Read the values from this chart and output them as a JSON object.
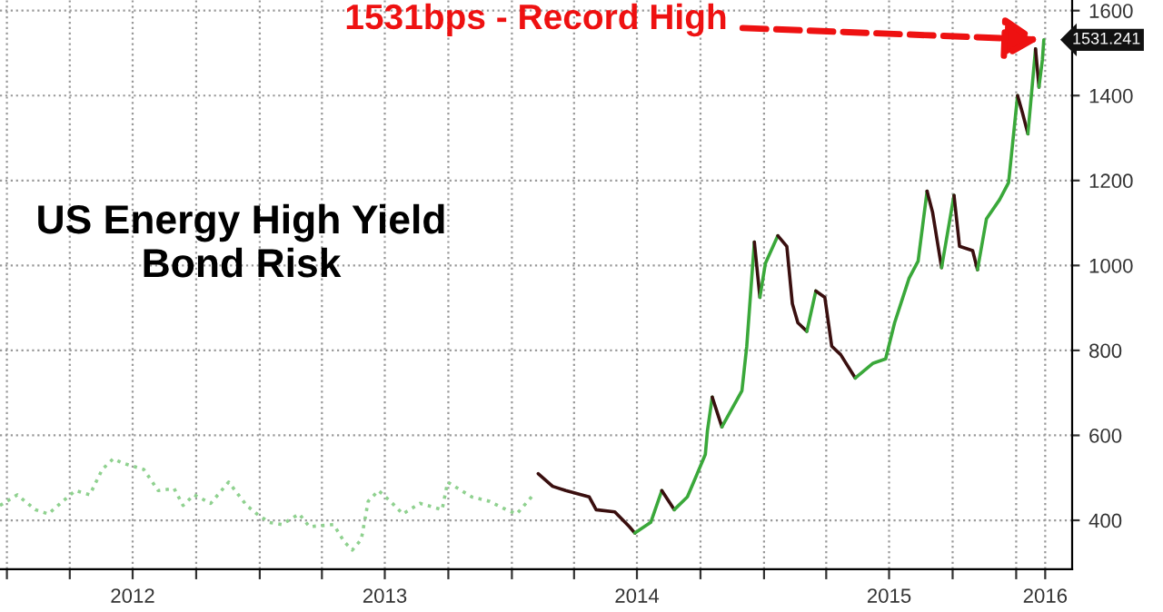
{
  "chart_data": {
    "type": "line",
    "title": "US Energy High Yield\nBond Risk",
    "xlim": [
      "2011-12-22",
      "2016-03-22"
    ],
    "ylim": [
      285,
      1625
    ],
    "xticks": [
      {
        "value": "2012-01-01",
        "label": null
      },
      {
        "value": "2012-04-01",
        "label": null
      },
      {
        "value": "2012-07-01",
        "label": "2012"
      },
      {
        "value": "2012-10-01",
        "label": null
      },
      {
        "value": "2013-01-01",
        "label": null
      },
      {
        "value": "2013-04-01",
        "label": null
      },
      {
        "value": "2013-07-01",
        "label": "2013"
      },
      {
        "value": "2013-10-01",
        "label": null
      },
      {
        "value": "2014-01-01",
        "label": null
      },
      {
        "value": "2014-04-01",
        "label": null
      },
      {
        "value": "2014-07-01",
        "label": "2014"
      },
      {
        "value": "2014-10-01",
        "label": null
      },
      {
        "value": "2015-01-01",
        "label": null
      },
      {
        "value": "2015-04-01",
        "label": null
      },
      {
        "value": "2015-07-01",
        "label": "2015"
      },
      {
        "value": "2015-10-01",
        "label": null
      },
      {
        "value": "2016-01-01",
        "label": null
      },
      {
        "value": "2016-02-12",
        "label": "2016"
      }
    ],
    "yticks": [
      400,
      600,
      800,
      1000,
      1200,
      1400,
      1600
    ],
    "grid": true,
    "legend": false,
    "marker": "none",
    "line_style": "solid",
    "series": [
      {
        "color": "#8fd18f",
        "line_style": "dotted",
        "x": [
          "2011-12-22",
          "2012-01-16",
          "2012-02-11",
          "2012-03-01",
          "2012-03-22",
          "2012-04-09",
          "2012-04-30",
          "2012-05-18",
          "2012-06-03",
          "2012-06-16",
          "2012-07-17",
          "2012-08-07",
          "2012-08-30",
          "2012-09-12",
          "2012-09-28",
          "2012-10-22",
          "2012-11-17",
          "2012-12-13",
          "2012-12-28",
          "2013-01-15",
          "2013-02-02",
          "2013-02-27",
          "2013-03-14",
          "2013-04-18",
          "2013-05-03",
          "2013-05-15",
          "2013-05-28",
          "2013-06-07",
          "2013-06-22",
          "2013-07-09",
          "2013-07-27",
          "2013-08-21",
          "2013-09-22",
          "2013-09-30",
          "2013-11-04",
          "2013-11-29",
          "2013-12-24",
          "2014-01-08",
          "2014-02-01"
        ],
        "values": [
          435,
          460,
          425,
          415,
          445,
          470,
          460,
          520,
          545,
          535,
          520,
          470,
          475,
          435,
          460,
          440,
          490,
          435,
          415,
          395,
          390,
          415,
          385,
          390,
          350,
          330,
          355,
          445,
          470,
          445,
          415,
          440,
          425,
          490,
          455,
          445,
          425,
          415,
          460
        ]
      },
      {
        "color": "#3a0f0f",
        "x": [
          "2014-02-08",
          "2014-03-01",
          "2014-03-20",
          "2014-04-23",
          "2014-05-03",
          "2014-05-30",
          "2014-06-20",
          "2014-06-28"
        ],
        "values": [
          510,
          480,
          470,
          455,
          425,
          420,
          385,
          370
        ]
      },
      {
        "color": "#3aa83a",
        "x": [
          "2014-06-28",
          "2014-07-21",
          "2014-08-06"
        ],
        "values": [
          370,
          395,
          470
        ]
      },
      {
        "color": "#3a0f0f",
        "x": [
          "2014-08-06",
          "2014-08-24"
        ],
        "values": [
          470,
          425
        ]
      },
      {
        "color": "#3aa83a",
        "x": [
          "2014-08-24",
          "2014-09-12",
          "2014-10-08",
          "2014-10-11",
          "2014-10-18"
        ],
        "values": [
          425,
          455,
          555,
          610,
          690
        ]
      },
      {
        "color": "#3a0f0f",
        "x": [
          "2014-10-18",
          "2014-11-01"
        ],
        "values": [
          690,
          620
        ]
      },
      {
        "color": "#3aa83a",
        "x": [
          "2014-11-01",
          "2014-11-30",
          "2014-12-07",
          "2014-12-18"
        ],
        "values": [
          620,
          705,
          810,
          1055
        ]
      },
      {
        "color": "#3a0f0f",
        "x": [
          "2014-12-18",
          "2014-12-26"
        ],
        "values": [
          1055,
          925
        ]
      },
      {
        "color": "#3aa83a",
        "x": [
          "2014-12-26",
          "2015-01-03",
          "2015-01-21"
        ],
        "values": [
          925,
          1005,
          1070
        ]
      },
      {
        "color": "#3a0f0f",
        "x": [
          "2015-01-21",
          "2015-02-03",
          "2015-02-11",
          "2015-02-19",
          "2015-03-04"
        ],
        "values": [
          1070,
          1045,
          910,
          865,
          845
        ]
      },
      {
        "color": "#3aa83a",
        "x": [
          "2015-03-04",
          "2015-03-17"
        ],
        "values": [
          845,
          940
        ]
      },
      {
        "color": "#3a0f0f",
        "x": [
          "2015-03-17",
          "2015-03-30",
          "2015-04-09",
          "2015-04-22",
          "2015-05-13"
        ],
        "values": [
          940,
          925,
          810,
          790,
          735
        ]
      },
      {
        "color": "#3aa83a",
        "x": [
          "2015-05-13",
          "2015-06-08",
          "2015-06-26",
          "2015-07-09",
          "2015-07-30",
          "2015-08-12",
          "2015-08-25"
        ],
        "values": [
          735,
          770,
          780,
          865,
          970,
          1010,
          1175
        ]
      },
      {
        "color": "#3a0f0f",
        "x": [
          "2015-08-25",
          "2015-09-02",
          "2015-09-15"
        ],
        "values": [
          1175,
          1125,
          995
        ]
      },
      {
        "color": "#3aa83a",
        "x": [
          "2015-09-15",
          "2015-10-03"
        ],
        "values": [
          995,
          1165
        ]
      },
      {
        "color": "#3a0f0f",
        "x": [
          "2015-10-03",
          "2015-10-11",
          "2015-10-30",
          "2015-11-06"
        ],
        "values": [
          1165,
          1045,
          1035,
          990
        ]
      },
      {
        "color": "#3aa83a",
        "x": [
          "2015-11-06",
          "2015-11-19",
          "2015-12-08",
          "2015-12-21",
          "2016-01-03"
        ],
        "values": [
          990,
          1110,
          1155,
          1195,
          1400
        ]
      },
      {
        "color": "#3a0f0f",
        "x": [
          "2016-01-03",
          "2016-01-10",
          "2016-01-18"
        ],
        "values": [
          1400,
          1360,
          1310
        ]
      },
      {
        "color": "#3aa83a",
        "x": [
          "2016-01-18",
          "2016-01-29"
        ],
        "values": [
          1310,
          1510
        ]
      },
      {
        "color": "#3a0f0f",
        "x": [
          "2016-01-29",
          "2016-02-03"
        ],
        "values": [
          1510,
          1420
        ]
      },
      {
        "color": "#3aa83a",
        "x": [
          "2016-02-03",
          "2016-02-08",
          "2016-02-10"
        ],
        "values": [
          1420,
          1485,
          1531.241
        ]
      }
    ],
    "annotations": [
      {
        "text": "1531bps - Record High",
        "x": "2016-02-10",
        "y": 1531.241
      },
      {
        "text": "1531.241",
        "x": "2016-02-10",
        "y": 1531.241
      }
    ]
  }
}
